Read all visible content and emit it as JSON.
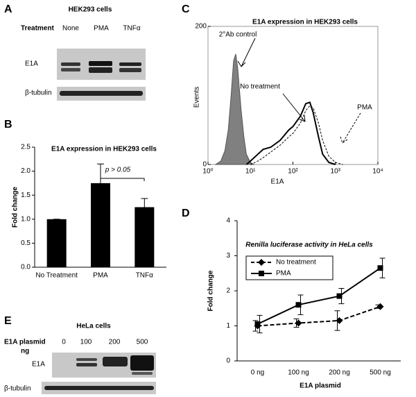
{
  "panel_labels": [
    "A",
    "B",
    "C",
    "D",
    "E"
  ],
  "blot_a": {
    "title": "HEK293 cells",
    "row_header": "Treatment",
    "lanes": [
      "None",
      "PMA",
      "TNFα"
    ],
    "bands": [
      "E1A",
      "β-tubulin"
    ]
  },
  "blot_e": {
    "title": "HeLa cells",
    "row_header": [
      "E1A plasmid",
      "ng"
    ],
    "lanes": [
      "0",
      "100",
      "200",
      "500"
    ],
    "bands": [
      "E1A",
      "β-tubulin"
    ]
  },
  "chart_data": [
    {
      "type": "bar",
      "title": "E1A expression in HEK293 cells",
      "y_label": "Fold change",
      "categories": [
        "No Treatment",
        "PMA",
        "TNFα"
      ],
      "values": [
        1.0,
        1.75,
        1.25
      ],
      "errors": [
        0,
        0.4,
        0.18
      ],
      "color": "#000000",
      "ylim": [
        0,
        2.5
      ],
      "yticks": [
        {
          "value": 0,
          "label": "0.0"
        },
        {
          "value": 0.5,
          "label": "0.5"
        },
        {
          "value": 1,
          "label": "1.0"
        },
        {
          "value": 1.5,
          "label": "1.5"
        },
        {
          "value": 2,
          "label": "2.0"
        },
        {
          "value": 2.5,
          "label": "2.5"
        }
      ],
      "annotation": "p > 0.05"
    },
    {
      "type": "area",
      "title": "E1A expression in HEK293 cells",
      "x_label": "E1A",
      "y_label": "Events",
      "log_x": true,
      "xlim": [
        1,
        10000
      ],
      "xticks": [
        {
          "value": 1,
          "label": "10⁰"
        },
        {
          "value": 10,
          "label": "10¹"
        },
        {
          "value": 100,
          "label": "10²"
        },
        {
          "value": 1000,
          "label": "10³"
        },
        {
          "value": 10000,
          "label": "10⁴"
        }
      ],
      "ylim": [
        0,
        200
      ],
      "yticks": [
        0,
        200
      ],
      "series": [
        {
          "name": "2°Ab control",
          "color": "#808080",
          "filled": true,
          "dashed": false,
          "x": [
            1.5,
            2,
            2.5,
            3,
            3.5,
            4,
            4.5,
            5,
            6,
            7,
            8,
            10,
            12
          ],
          "values": [
            0,
            5,
            20,
            50,
            100,
            150,
            160,
            140,
            80,
            40,
            15,
            3,
            0
          ]
        },
        {
          "name": "No treatment",
          "color": "#000000",
          "filled": false,
          "dashed": false,
          "x": [
            8,
            10,
            15,
            20,
            30,
            50,
            80,
            100,
            150,
            200,
            250,
            300,
            400,
            500,
            700,
            1000
          ],
          "values": [
            0,
            5,
            15,
            22,
            25,
            35,
            50,
            55,
            70,
            88,
            90,
            75,
            40,
            15,
            3,
            0
          ]
        },
        {
          "name": "PMA",
          "color": "#000000",
          "filled": false,
          "dashed": true,
          "x": [
            10,
            15,
            20,
            30,
            50,
            80,
            100,
            150,
            200,
            250,
            300,
            400,
            500,
            700,
            1000,
            1500
          ],
          "values": [
            0,
            5,
            10,
            18,
            28,
            40,
            45,
            60,
            78,
            85,
            82,
            60,
            35,
            12,
            3,
            0
          ]
        }
      ]
    },
    {
      "type": "line",
      "title": "Renilla luciferase activity in HeLa cells",
      "x_label": "E1A plasmid",
      "y_label": "Fold change",
      "categories": [
        "0 ng",
        "100 ng",
        "200 ng",
        "500 ng"
      ],
      "ylim": [
        0,
        4
      ],
      "yticks": [
        0,
        1,
        2,
        3,
        4
      ],
      "series": [
        {
          "name": "No treatment",
          "color": "#000000",
          "dashed": true,
          "marker": "diamond",
          "values": [
            1.0,
            1.08,
            1.15,
            1.55
          ],
          "errors": [
            0.15,
            0.12,
            0.28,
            0.05
          ]
        },
        {
          "name": "PMA",
          "color": "#000000",
          "dashed": false,
          "marker": "square",
          "values": [
            1.05,
            1.6,
            1.85,
            2.65
          ],
          "errors": [
            0.25,
            0.28,
            0.22,
            0.28
          ]
        }
      ]
    }
  ]
}
